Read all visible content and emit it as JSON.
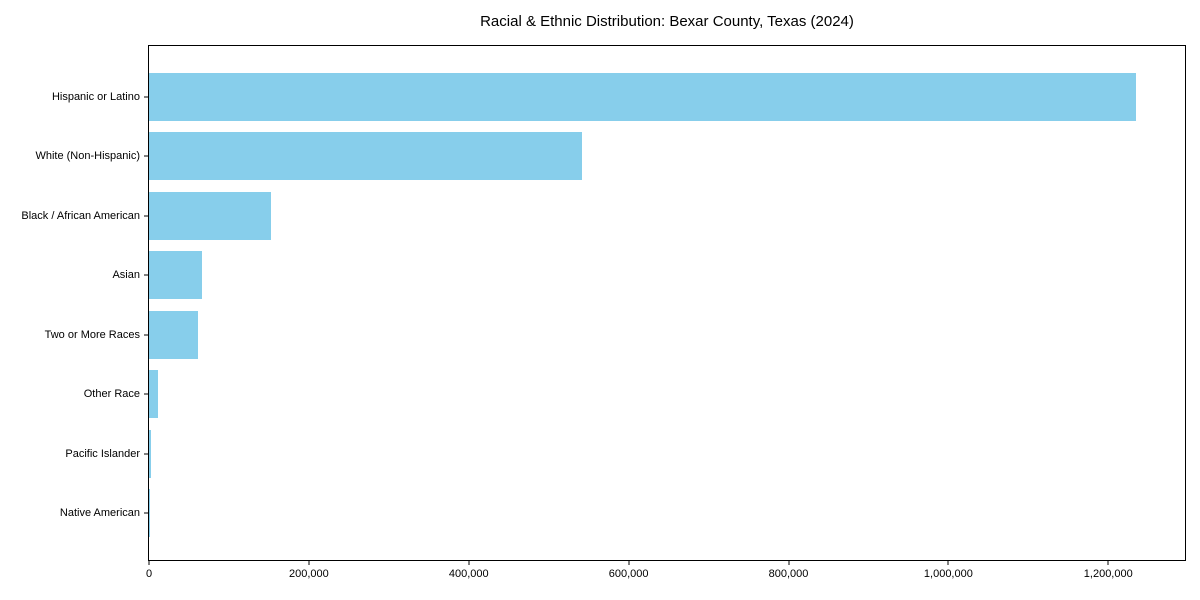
{
  "title": "Racial & Ethnic Distribution: Bexar County, Texas (2024)",
  "colors": {
    "bar": "#87CEEB",
    "text": "#000000",
    "spine": "#000000",
    "background": "#ffffff"
  },
  "chart_data": {
    "type": "bar",
    "orientation": "horizontal",
    "title": "Racial & Ethnic Distribution: Bexar County, Texas (2024)",
    "xlabel": "",
    "ylabel": "",
    "categories": [
      "Hispanic or Latino",
      "White (Non-Hispanic)",
      "Black / African American",
      "Asian",
      "Two or More Races",
      "Other Race",
      "Pacific Islander",
      "Native American"
    ],
    "values": [
      1235000,
      542000,
      152000,
      66000,
      61000,
      11000,
      2000,
      1500
    ],
    "bar_color": "#87CEEB",
    "xlim": [
      0,
      1296000
    ],
    "x_ticks": [
      0,
      200000,
      400000,
      600000,
      800000,
      1000000,
      1200000
    ],
    "x_tick_labels": [
      "0",
      "200,000",
      "400,000",
      "600,000",
      "800,000",
      "1,000,000",
      "1,200,000"
    ],
    "grid": false,
    "legend": null,
    "frame": "full-box"
  }
}
